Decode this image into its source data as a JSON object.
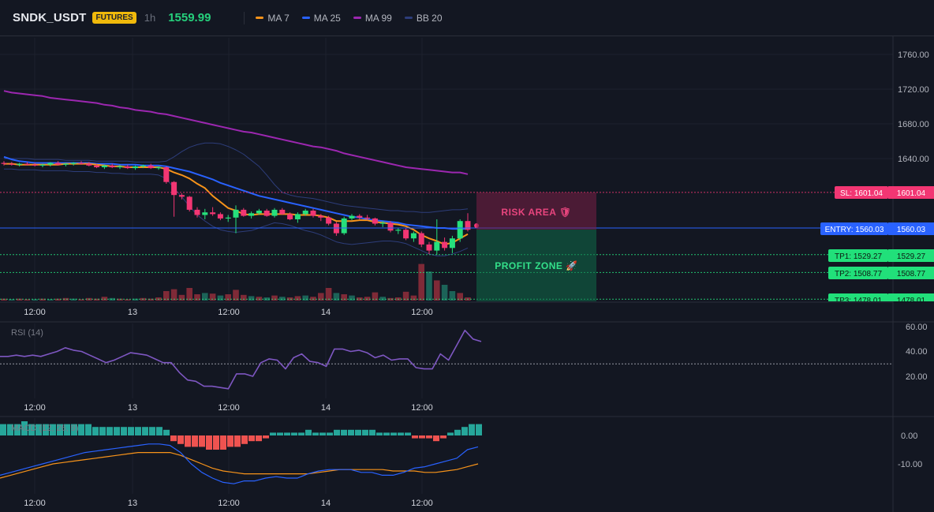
{
  "header": {
    "symbol": "SNDK_USDT",
    "market_badge": "FUTURES",
    "timeframe": "1h",
    "last_price": "1559.99"
  },
  "legend": [
    {
      "label": "MA 7",
      "color": "#f7931a"
    },
    {
      "label": "MA 25",
      "color": "#2962ff"
    },
    {
      "label": "MA 99",
      "color": "#9c27b0"
    },
    {
      "label": "BB 20",
      "color": "#2d3d7a"
    }
  ],
  "price_axis": {
    "labels": [
      "1760.00",
      "1720.00",
      "1680.00",
      "1640.00"
    ]
  },
  "levels": [
    {
      "name": "sl",
      "label": "SL: 1601.04",
      "axis": "1601.04",
      "price": 1601.04,
      "color": "#f23673"
    },
    {
      "name": "entry",
      "label": "ENTRY: 1560.03",
      "axis": "1560.03",
      "price": 1560.03,
      "color": "#2962ff"
    },
    {
      "name": "tp1",
      "label": "TP1: 1529.27",
      "axis": "1529.27",
      "price": 1529.27,
      "color": "#26e07c"
    },
    {
      "name": "tp2",
      "label": "TP2: 1508.77",
      "axis": "1508.77",
      "price": 1508.77,
      "color": "#26e07c"
    },
    {
      "name": "tp3",
      "label": "TP3: 1478.01",
      "axis": "1478.01",
      "price": 1478.01,
      "color": "#26e07c"
    }
  ],
  "zones": {
    "risk": "RISK AREA 🛡",
    "profit": "PROFIT ZONE 🚀"
  },
  "time_axis": [
    "12:00",
    "13",
    "12:00",
    "14",
    "12:00"
  ],
  "rsi": {
    "title": "RSI (14)",
    "axis": [
      "60.00",
      "40.00",
      "20.00"
    ],
    "reference": 30
  },
  "macd": {
    "title": "MACD (12, 26, 9)",
    "axis": [
      "0.00",
      "-10.00"
    ]
  },
  "chart_data": {
    "type": "candlestick",
    "ylim": [
      1470,
      1775
    ],
    "candles": [
      {
        "o": 1635,
        "h": 1637,
        "l": 1632,
        "c": 1634
      },
      {
        "o": 1634,
        "h": 1636,
        "l": 1632,
        "c": 1633
      },
      {
        "o": 1633,
        "h": 1635,
        "l": 1631,
        "c": 1634
      },
      {
        "o": 1634,
        "h": 1636,
        "l": 1632,
        "c": 1633
      },
      {
        "o": 1633,
        "h": 1635,
        "l": 1631,
        "c": 1632
      },
      {
        "o": 1632,
        "h": 1634,
        "l": 1630,
        "c": 1633
      },
      {
        "o": 1633,
        "h": 1636,
        "l": 1631,
        "c": 1635
      },
      {
        "o": 1635,
        "h": 1637,
        "l": 1632,
        "c": 1633
      },
      {
        "o": 1633,
        "h": 1635,
        "l": 1631,
        "c": 1634
      },
      {
        "o": 1634,
        "h": 1636,
        "l": 1632,
        "c": 1635
      },
      {
        "o": 1635,
        "h": 1637,
        "l": 1633,
        "c": 1634
      },
      {
        "o": 1634,
        "h": 1636,
        "l": 1631,
        "c": 1632
      },
      {
        "o": 1632,
        "h": 1634,
        "l": 1629,
        "c": 1630
      },
      {
        "o": 1630,
        "h": 1633,
        "l": 1628,
        "c": 1632
      },
      {
        "o": 1632,
        "h": 1634,
        "l": 1629,
        "c": 1630
      },
      {
        "o": 1630,
        "h": 1633,
        "l": 1628,
        "c": 1631
      },
      {
        "o": 1631,
        "h": 1633,
        "l": 1628,
        "c": 1629
      },
      {
        "o": 1629,
        "h": 1632,
        "l": 1627,
        "c": 1631
      },
      {
        "o": 1631,
        "h": 1633,
        "l": 1629,
        "c": 1632
      },
      {
        "o": 1632,
        "h": 1634,
        "l": 1628,
        "c": 1629
      },
      {
        "o": 1629,
        "h": 1631,
        "l": 1627,
        "c": 1630
      },
      {
        "o": 1630,
        "h": 1631,
        "l": 1611,
        "c": 1613
      },
      {
        "o": 1613,
        "h": 1614,
        "l": 1573,
        "c": 1598
      },
      {
        "o": 1598,
        "h": 1600,
        "l": 1593,
        "c": 1596
      },
      {
        "o": 1596,
        "h": 1597,
        "l": 1579,
        "c": 1581
      },
      {
        "o": 1581,
        "h": 1584,
        "l": 1572,
        "c": 1575
      },
      {
        "o": 1575,
        "h": 1582,
        "l": 1570,
        "c": 1578
      },
      {
        "o": 1578,
        "h": 1584,
        "l": 1574,
        "c": 1576
      },
      {
        "o": 1576,
        "h": 1578,
        "l": 1569,
        "c": 1571
      },
      {
        "o": 1571,
        "h": 1575,
        "l": 1567,
        "c": 1572
      },
      {
        "o": 1572,
        "h": 1586,
        "l": 1554,
        "c": 1581
      },
      {
        "o": 1581,
        "h": 1583,
        "l": 1573,
        "c": 1574
      },
      {
        "o": 1574,
        "h": 1579,
        "l": 1571,
        "c": 1577
      },
      {
        "o": 1577,
        "h": 1582,
        "l": 1575,
        "c": 1580
      },
      {
        "o": 1580,
        "h": 1582,
        "l": 1573,
        "c": 1574
      },
      {
        "o": 1574,
        "h": 1583,
        "l": 1572,
        "c": 1581
      },
      {
        "o": 1581,
        "h": 1583,
        "l": 1575,
        "c": 1576
      },
      {
        "o": 1576,
        "h": 1578,
        "l": 1569,
        "c": 1570
      },
      {
        "o": 1570,
        "h": 1578,
        "l": 1566,
        "c": 1576
      },
      {
        "o": 1576,
        "h": 1582,
        "l": 1574,
        "c": 1580
      },
      {
        "o": 1580,
        "h": 1582,
        "l": 1572,
        "c": 1574
      },
      {
        "o": 1574,
        "h": 1576,
        "l": 1568,
        "c": 1572
      },
      {
        "o": 1572,
        "h": 1574,
        "l": 1563,
        "c": 1565
      },
      {
        "o": 1565,
        "h": 1567,
        "l": 1551,
        "c": 1554
      },
      {
        "o": 1554,
        "h": 1573,
        "l": 1552,
        "c": 1571
      },
      {
        "o": 1571,
        "h": 1576,
        "l": 1569,
        "c": 1574
      },
      {
        "o": 1574,
        "h": 1576,
        "l": 1570,
        "c": 1572
      },
      {
        "o": 1572,
        "h": 1575,
        "l": 1569,
        "c": 1571
      },
      {
        "o": 1571,
        "h": 1572,
        "l": 1563,
        "c": 1565
      },
      {
        "o": 1565,
        "h": 1568,
        "l": 1561,
        "c": 1566
      },
      {
        "o": 1566,
        "h": 1568,
        "l": 1555,
        "c": 1557
      },
      {
        "o": 1557,
        "h": 1560,
        "l": 1553,
        "c": 1558
      },
      {
        "o": 1558,
        "h": 1560,
        "l": 1546,
        "c": 1548
      },
      {
        "o": 1548,
        "h": 1556,
        "l": 1544,
        "c": 1554
      },
      {
        "o": 1554,
        "h": 1556,
        "l": 1538,
        "c": 1541
      },
      {
        "o": 1541,
        "h": 1544,
        "l": 1530,
        "c": 1534
      },
      {
        "o": 1534,
        "h": 1570,
        "l": 1529,
        "c": 1544
      },
      {
        "o": 1544,
        "h": 1549,
        "l": 1534,
        "c": 1537
      },
      {
        "o": 1537,
        "h": 1551,
        "l": 1531,
        "c": 1548
      },
      {
        "o": 1548,
        "h": 1570,
        "l": 1544,
        "c": 1568
      },
      {
        "o": 1568,
        "h": 1577,
        "l": 1556,
        "c": 1558
      }
    ],
    "volume": [
      {
        "v": 3,
        "up": false
      },
      {
        "v": 2,
        "up": true
      },
      {
        "v": 3,
        "up": false
      },
      {
        "v": 2,
        "up": false
      },
      {
        "v": 2,
        "up": true
      },
      {
        "v": 3,
        "up": false
      },
      {
        "v": 2,
        "up": true
      },
      {
        "v": 3,
        "up": false
      },
      {
        "v": 4,
        "up": false
      },
      {
        "v": 3,
        "up": true
      },
      {
        "v": 2,
        "up": false
      },
      {
        "v": 4,
        "up": false
      },
      {
        "v": 3,
        "up": false
      },
      {
        "v": 6,
        "up": false
      },
      {
        "v": 4,
        "up": true
      },
      {
        "v": 3,
        "up": false
      },
      {
        "v": 2,
        "up": false
      },
      {
        "v": 3,
        "up": true
      },
      {
        "v": 4,
        "up": false
      },
      {
        "v": 3,
        "up": false
      },
      {
        "v": 5,
        "up": false
      },
      {
        "v": 15,
        "up": false
      },
      {
        "v": 18,
        "up": false
      },
      {
        "v": 9,
        "up": false
      },
      {
        "v": 20,
        "up": false
      },
      {
        "v": 10,
        "up": false
      },
      {
        "v": 12,
        "up": true
      },
      {
        "v": 11,
        "up": false
      },
      {
        "v": 8,
        "up": true
      },
      {
        "v": 10,
        "up": false
      },
      {
        "v": 17,
        "up": false
      },
      {
        "v": 9,
        "up": false
      },
      {
        "v": 7,
        "up": true
      },
      {
        "v": 6,
        "up": false
      },
      {
        "v": 5,
        "up": true
      },
      {
        "v": 8,
        "up": false
      },
      {
        "v": 6,
        "up": true
      },
      {
        "v": 5,
        "up": false
      },
      {
        "v": 7,
        "up": false
      },
      {
        "v": 8,
        "up": true
      },
      {
        "v": 6,
        "up": false
      },
      {
        "v": 12,
        "up": false
      },
      {
        "v": 20,
        "up": false
      },
      {
        "v": 12,
        "up": true
      },
      {
        "v": 10,
        "up": false
      },
      {
        "v": 8,
        "up": true
      },
      {
        "v": 5,
        "up": false
      },
      {
        "v": 6,
        "up": false
      },
      {
        "v": 13,
        "up": false
      },
      {
        "v": 6,
        "up": true
      },
      {
        "v": 4,
        "up": false
      },
      {
        "v": 5,
        "up": false
      },
      {
        "v": 14,
        "up": false
      },
      {
        "v": 8,
        "up": false
      },
      {
        "v": 58,
        "up": false
      },
      {
        "v": 46,
        "up": true
      },
      {
        "v": 32,
        "up": false
      },
      {
        "v": 25,
        "up": true
      },
      {
        "v": 15,
        "up": true
      },
      {
        "v": 12,
        "up": false
      },
      {
        "v": 5,
        "up": false
      }
    ],
    "ma7": [
      1634,
      1634,
      1633,
      1633,
      1633,
      1633,
      1633,
      1633,
      1634,
      1634,
      1634,
      1634,
      1633,
      1632,
      1631,
      1631,
      1630,
      1630,
      1630,
      1630,
      1630,
      1628,
      1624,
      1621,
      1617,
      1611,
      1606,
      1597,
      1590,
      1583,
      1580,
      1576,
      1575,
      1576,
      1576,
      1576,
      1576,
      1576,
      1575,
      1575,
      1575,
      1574,
      1572,
      1568,
      1568,
      1568,
      1569,
      1569,
      1567,
      1566,
      1565,
      1564,
      1562,
      1558,
      1552,
      1548,
      1545,
      1541,
      1543,
      1548,
      1553
    ],
    "ma25": [
      1642,
      1639,
      1637,
      1636,
      1635,
      1635,
      1635,
      1635,
      1635,
      1635,
      1635,
      1635,
      1634,
      1634,
      1634,
      1633,
      1633,
      1633,
      1632,
      1632,
      1632,
      1631,
      1629,
      1627,
      1625,
      1622,
      1619,
      1616,
      1612,
      1609,
      1606,
      1603,
      1600,
      1597,
      1595,
      1593,
      1591,
      1589,
      1587,
      1585,
      1583,
      1581,
      1579,
      1577,
      1575,
      1573,
      1572,
      1570,
      1569,
      1568,
      1567,
      1566,
      1564,
      1563,
      1562,
      1561,
      1560,
      1560,
      1559,
      1559,
      1559
    ],
    "ma99": [
      1718,
      1716,
      1715,
      1714,
      1713,
      1712,
      1710,
      1709,
      1708,
      1707,
      1706,
      1705,
      1704,
      1702,
      1701,
      1699,
      1698,
      1696,
      1695,
      1694,
      1692,
      1691,
      1689,
      1687,
      1685,
      1683,
      1681,
      1679,
      1677,
      1675,
      1673,
      1671,
      1670,
      1668,
      1666,
      1664,
      1662,
      1660,
      1658,
      1656,
      1654,
      1653,
      1651,
      1649,
      1646,
      1644,
      1642,
      1640,
      1638,
      1636,
      1634,
      1632,
      1630,
      1629,
      1628,
      1627,
      1626,
      1625,
      1624,
      1624,
      1622
    ],
    "bb_upper": [
      1640,
      1640,
      1640,
      1640,
      1639,
      1639,
      1639,
      1639,
      1638,
      1638,
      1638,
      1638,
      1637,
      1637,
      1637,
      1637,
      1637,
      1636,
      1636,
      1636,
      1636,
      1637,
      1642,
      1648,
      1653,
      1656,
      1658,
      1658,
      1657,
      1654,
      1650,
      1645,
      1638,
      1631,
      1621,
      1610,
      1601,
      1598,
      1596,
      1595,
      1594,
      1592,
      1590,
      1588,
      1586,
      1585,
      1584,
      1583,
      1582,
      1581,
      1580,
      1580,
      1579,
      1579,
      1578,
      1578,
      1579,
      1580,
      1581,
      1581,
      1582
    ],
    "bb_lower": [
      1628,
      1628,
      1627,
      1627,
      1627,
      1626,
      1626,
      1626,
      1626,
      1625,
      1625,
      1625,
      1624,
      1624,
      1623,
      1623,
      1622,
      1622,
      1622,
      1622,
      1621,
      1617,
      1606,
      1596,
      1585,
      1575,
      1568,
      1562,
      1558,
      1556,
      1555,
      1556,
      1557,
      1560,
      1563,
      1566,
      1565,
      1563,
      1560,
      1557,
      1555,
      1552,
      1548,
      1544,
      1542,
      1541,
      1542,
      1543,
      1544,
      1545,
      1545,
      1544,
      1542,
      1538,
      1534,
      1530,
      1528,
      1528,
      1530,
      1533,
      1537
    ],
    "rsi": [
      36,
      36,
      37,
      36,
      37,
      36,
      38,
      40,
      43,
      41,
      40,
      37,
      34,
      31,
      33,
      36,
      39,
      38,
      37,
      34,
      31,
      31,
      23,
      17,
      16,
      12,
      12,
      11,
      10,
      22,
      22,
      20,
      31,
      34,
      33,
      26,
      35,
      38,
      32,
      31,
      28,
      42,
      42,
      40,
      41,
      39,
      35,
      37,
      33,
      34,
      34,
      27,
      26,
      26,
      38,
      33,
      45,
      57,
      50,
      48
    ],
    "macd_hist": [
      4,
      4,
      4,
      5,
      4,
      4,
      4,
      4,
      4,
      4,
      4,
      4,
      4,
      3,
      3,
      3,
      3,
      3,
      3,
      3,
      3,
      3,
      3,
      2,
      -2,
      -3,
      -4,
      -4,
      -4,
      -5,
      -5,
      -5,
      -4,
      -4,
      -3,
      -2,
      -2,
      -1,
      1,
      1,
      1,
      1,
      1,
      2,
      1,
      1,
      1,
      2,
      2,
      2,
      2,
      2,
      2,
      1,
      1,
      1,
      1,
      1,
      -1,
      -1,
      -1,
      -2,
      -1,
      1,
      2,
      3,
      4,
      4
    ],
    "macd_line": [
      -14,
      -13,
      -12,
      -11,
      -10,
      -9,
      -8,
      -7,
      -6,
      -5.5,
      -5,
      -4.5,
      -4,
      -3.5,
      -3,
      -3,
      -3.5,
      -6,
      -10,
      -13,
      -15,
      -16.5,
      -17,
      -16,
      -16,
      -15,
      -14.5,
      -15,
      -15,
      -13.5,
      -12.5,
      -12,
      -12,
      -12,
      -13,
      -13,
      -14,
      -14,
      -13,
      -11.5,
      -11,
      -10,
      -9,
      -8,
      -5,
      -4
    ],
    "macd_signal": [
      -15,
      -14,
      -13,
      -12,
      -11,
      -10,
      -9.5,
      -9,
      -8.5,
      -8,
      -7.5,
      -7,
      -6.5,
      -6,
      -6,
      -6,
      -6,
      -7,
      -8.5,
      -10,
      -11.5,
      -12.5,
      -13,
      -13.5,
      -13.5,
      -13.5,
      -13.5,
      -13.5,
      -13.5,
      -13.5,
      -13,
      -12.5,
      -12,
      -12,
      -12,
      -12,
      -12,
      -12.5,
      -12.5,
      -12.5,
      -13,
      -13,
      -12.5,
      -12,
      -11,
      -10
    ]
  }
}
